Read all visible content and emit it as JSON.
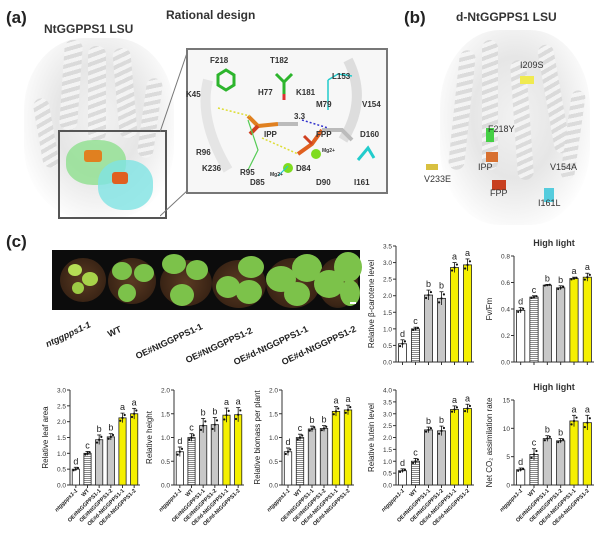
{
  "panels": {
    "a": {
      "letter": "(a)",
      "structure_title": "NtGGPPS1 LSU",
      "design_title": "Rational design",
      "residues": [
        "F218",
        "T182",
        "L153",
        "K45",
        "H77",
        "K181",
        "M79",
        "V154",
        "3.3",
        "IPP",
        "FPP",
        "D160",
        "R96",
        "Mg2+",
        "Mg2+",
        "D84",
        "R95",
        "K236",
        "D85",
        "D90",
        "I161"
      ]
    },
    "b": {
      "letter": "(b)",
      "title": "d-NtGGPPS1 LSU",
      "mutations": [
        "I209S",
        "F218Y",
        "IPP",
        "V154A",
        "V233E",
        "FPP",
        "I161L"
      ]
    },
    "c": {
      "letter": "(c)",
      "genotypes": [
        "ntggpps1-1",
        "WT",
        "OE#NtGGPPS1-1",
        "OE#NtGGPPS1-2",
        "OE#d-NtGGPPS1-1",
        "OE#d-NtGGPPS1-2"
      ]
    }
  },
  "colors": {
    "mutant": "#ffffff",
    "wt": "#9a9a9a",
    "oe": "#c8c8c8",
    "oe_d": "#f5f000",
    "axis": "#333333"
  },
  "chart_data": [
    {
      "type": "bar",
      "id": "beta-carotene",
      "title": "",
      "ylabel": "Relative β-carotene level",
      "categories": [
        "ntggpps1-1",
        "WT",
        "OE#NtGGPPS1-1",
        "OE#NtGGPPS1-2",
        "OE#d-NtGGPPS1-1",
        "OE#d-NtGGPPS1-2"
      ],
      "values": [
        0.55,
        1.0,
        2.02,
        1.92,
        2.85,
        2.93
      ],
      "errors": [
        0.12,
        0.05,
        0.15,
        0.2,
        0.15,
        0.18
      ],
      "letters": [
        "d",
        "c",
        "b",
        "b",
        "a",
        "a"
      ],
      "ylim": [
        0,
        3.5
      ],
      "yticks": [
        "0.0",
        "0.5",
        "1.0",
        "1.5",
        "2.0",
        "2.5",
        "3.0",
        "3.5"
      ]
    },
    {
      "type": "bar",
      "id": "fv-fm",
      "title": "High light",
      "ylabel": "Fv/Fm",
      "categories": [
        "ntggpps1-1",
        "WT",
        "OE#NtGGPPS1-1",
        "OE#NtGGPPS1-2",
        "OE#d-NtGGPPS1-1",
        "OE#d-NtGGPPS1-2"
      ],
      "values": [
        0.39,
        0.49,
        0.58,
        0.56,
        0.63,
        0.64
      ],
      "errors": [
        0.02,
        0.01,
        0.005,
        0.015,
        0.01,
        0.03
      ],
      "letters": [
        "d",
        "c",
        "b",
        "b",
        "a",
        "a"
      ],
      "ylim": [
        0,
        0.8
      ],
      "yticks": [
        "0.0",
        "0.2",
        "0.4",
        "0.6",
        "0.8"
      ]
    },
    {
      "type": "bar",
      "id": "leaf-area",
      "title": "",
      "ylabel": "Relative leaf area",
      "categories": [
        "ntggpps1-1",
        "WT",
        "OE#NtGGPPS1-1",
        "OE#NtGGPPS1-2",
        "OE#d-NtGGPPS1-1",
        "OE#d-NtGGPPS1-2"
      ],
      "values": [
        0.5,
        1.0,
        1.43,
        1.52,
        2.12,
        2.25
      ],
      "errors": [
        0.06,
        0.06,
        0.15,
        0.1,
        0.15,
        0.17
      ],
      "letters": [
        "d",
        "c",
        "b",
        "b",
        "a",
        "a"
      ],
      "ylim": [
        0,
        3.0
      ],
      "yticks": [
        "0.0",
        "0.5",
        "1.0",
        "1.5",
        "2.0",
        "2.5",
        "3.0"
      ]
    },
    {
      "type": "bar",
      "id": "height",
      "title": "",
      "ylabel": "Relative height",
      "categories": [
        "ntggpps1-1",
        "WT",
        "OE#NtGGPPS1-1",
        "OE#NtGGPPS1-2",
        "OE#d-NtGGPPS1-1",
        "OE#d-NtGGPPS1-2"
      ],
      "values": [
        0.7,
        1.0,
        1.25,
        1.27,
        1.47,
        1.48
      ],
      "errors": [
        0.1,
        0.08,
        0.15,
        0.15,
        0.15,
        0.15
      ],
      "letters": [
        "d",
        "c",
        "b",
        "b",
        "a",
        "a"
      ],
      "ylim": [
        0,
        2.0
      ],
      "yticks": [
        "0.0",
        "0.5",
        "1.0",
        "1.5",
        "2.0"
      ]
    },
    {
      "type": "bar",
      "id": "biomass",
      "title": "",
      "ylabel": "Relative biomass per plant",
      "categories": [
        "ntggpps1-1",
        "WT",
        "OE#NtGGPPS1-1",
        "OE#NtGGPPS1-2",
        "OE#d-NtGGPPS1-1",
        "OE#d-NtGGPPS1-2"
      ],
      "values": [
        0.7,
        1.0,
        1.18,
        1.19,
        1.55,
        1.58
      ],
      "errors": [
        0.08,
        0.07,
        0.06,
        0.06,
        0.1,
        0.1
      ],
      "letters": [
        "d",
        "c",
        "b",
        "b",
        "a",
        "a"
      ],
      "ylim": [
        0,
        2.0
      ],
      "yticks": [
        "0.0",
        "0.5",
        "1.0",
        "1.5",
        "2.0"
      ]
    },
    {
      "type": "bar",
      "id": "lutein",
      "title": "",
      "ylabel": "Relative lutein level",
      "categories": [
        "ntggpps1-1",
        "WT",
        "OE#NtGGPPS1-1",
        "OE#NtGGPPS1-2",
        "OE#d-NtGGPPS1-1",
        "OE#d-NtGGPPS1-2"
      ],
      "values": [
        0.6,
        1.0,
        2.32,
        2.28,
        3.18,
        3.22
      ],
      "errors": [
        0.08,
        0.12,
        0.12,
        0.2,
        0.15,
        0.18
      ],
      "letters": [
        "d",
        "c",
        "b",
        "b",
        "a",
        "a"
      ],
      "ylim": [
        0,
        4.0
      ],
      "yticks": [
        "0.0",
        "0.5",
        "1.0",
        "1.5",
        "2.0",
        "2.5",
        "3.0",
        "3.5",
        "4.0"
      ]
    },
    {
      "type": "bar",
      "id": "co2-assimilation",
      "title": "High light",
      "ylabel": "Net CO₂ assimilation rate",
      "categories": [
        "ntggpps1-1",
        "WT",
        "OE#NtGGPPS1-1",
        "OE#NtGGPPS1-2",
        "OE#d-NtGGPPS1-1",
        "OE#d-NtGGPPS1-2"
      ],
      "values": [
        2.7,
        5.4,
        8.2,
        7.8,
        11.3,
        11.0
      ],
      "errors": [
        0.3,
        1.0,
        0.5,
        0.4,
        1.0,
        1.3
      ],
      "letters": [
        "d",
        "c",
        "b",
        "b",
        "a",
        "a"
      ],
      "ylim": [
        0,
        15
      ],
      "yticks": [
        "0",
        "5",
        "10",
        "15"
      ]
    }
  ]
}
